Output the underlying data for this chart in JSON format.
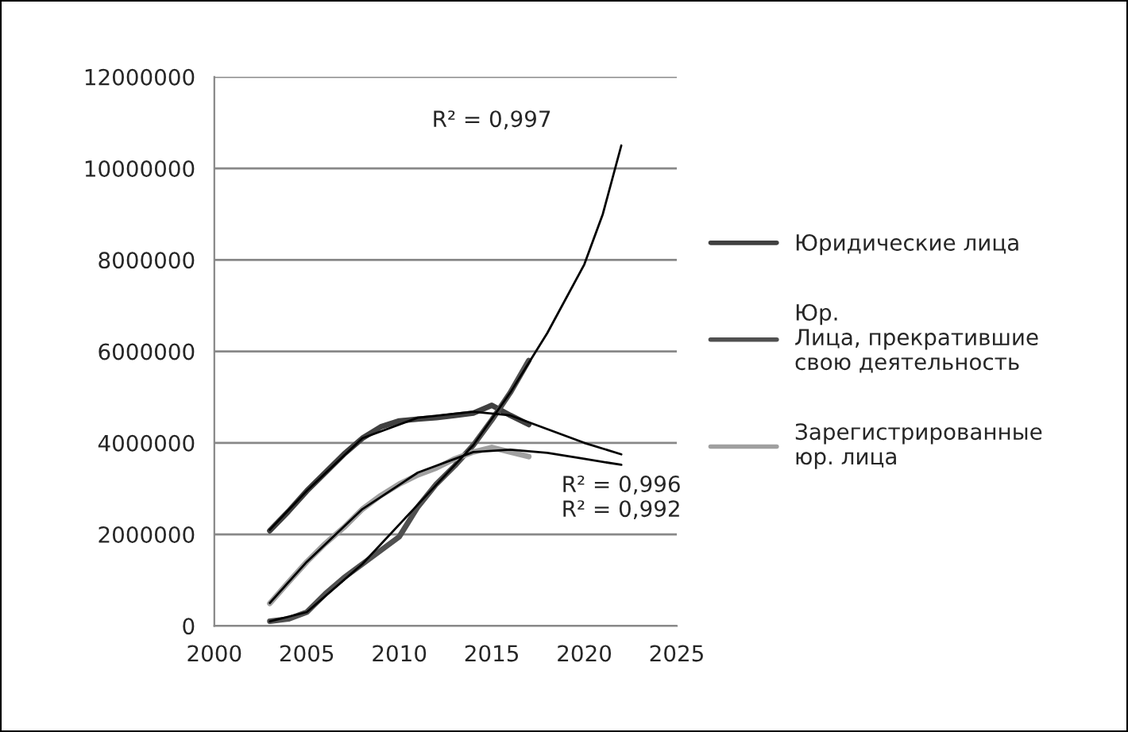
{
  "chart_data": {
    "type": "line",
    "xlim": [
      2000,
      2025
    ],
    "xticks": [
      2000,
      2005,
      2010,
      2015,
      2020,
      2025
    ],
    "ylim": [
      0,
      12000000
    ],
    "yticks": [
      0,
      2000000,
      4000000,
      6000000,
      8000000,
      10000000,
      12000000
    ],
    "grid": "y",
    "legend": "right",
    "x": [
      2003,
      2004,
      2005,
      2006,
      2007,
      2008,
      2009,
      2010,
      2011,
      2012,
      2013,
      2014,
      2015,
      2016,
      2017
    ],
    "series": [
      {
        "name": "Юридические лица",
        "color": "#404040",
        "values": [
          2080000,
          2500000,
          2950000,
          3350000,
          3750000,
          4100000,
          4350000,
          4480000,
          4520000,
          4550000,
          4600000,
          4650000,
          4820000,
          4600000,
          4400000
        ]
      },
      {
        "name": "Юр.\nЛица, прекратившие\nсвою деятельность",
        "color": "#505050",
        "values": [
          100000,
          150000,
          300000,
          700000,
          1050000,
          1350000,
          1650000,
          1950000,
          2600000,
          3100000,
          3500000,
          3950000,
          4500000,
          5100000,
          5800000
        ]
      },
      {
        "name": "Зарегистрированные\nюр. лица",
        "color": "#a0a0a0",
        "values": [
          490000,
          950000,
          1400000,
          1800000,
          2150000,
          2550000,
          2850000,
          3100000,
          3300000,
          3450000,
          3650000,
          3800000,
          3900000,
          3800000,
          3700000
        ]
      },
      {
        "type": "line",
        "color": "#000000",
        "x": [
          2003,
          2005,
          2008,
          2011,
          2014,
          2016,
          2018,
          2020,
          2022
        ],
        "values": [
          2100000,
          2950000,
          4100000,
          4550000,
          4680000,
          4600000,
          4300000,
          4000000,
          3750000
        ]
      },
      {
        "type": "line",
        "color": "#000000",
        "x": [
          2003,
          2005,
          2008,
          2011,
          2014,
          2016,
          2018,
          2020,
          2021,
          2022
        ],
        "values": [
          100000,
          300000,
          1350000,
          2650000,
          3950000,
          5100000,
          6400000,
          7900000,
          9000000,
          10500000
        ]
      },
      {
        "type": "line",
        "color": "#000000",
        "x": [
          2003,
          2005,
          2008,
          2011,
          2014,
          2016,
          2018,
          2020,
          2022
        ],
        "values": [
          500000,
          1400000,
          2550000,
          3350000,
          3800000,
          3850000,
          3780000,
          3650000,
          3520000
        ]
      }
    ],
    "annotations": [
      "R² = 0,997",
      "R² = 0,996",
      "R² = 0,992"
    ]
  }
}
